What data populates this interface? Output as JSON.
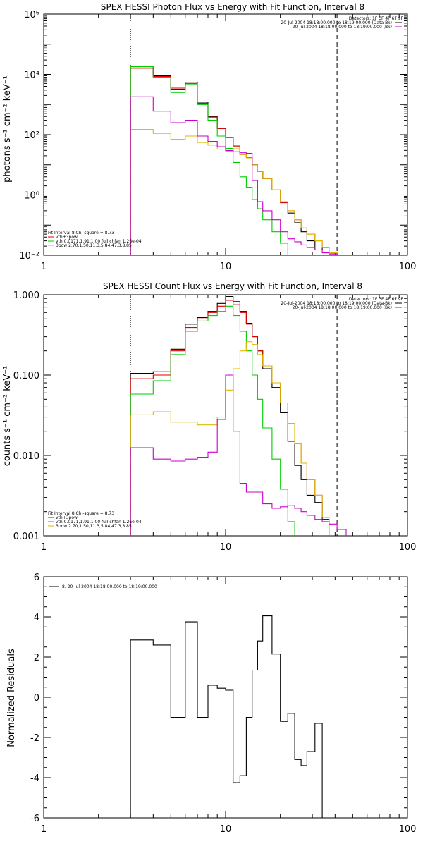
{
  "chart_data": [
    {
      "type": "line",
      "title": "SPEX HESSI Photon Flux vs Energy with Fit Function, Interval 8",
      "xlabel": "",
      "ylabel": "photons s⁻¹ cm⁻² keV⁻¹",
      "xscale": "log",
      "yscale": "log",
      "xlim": [
        1,
        100
      ],
      "ylim": [
        0.01,
        1000000
      ],
      "xticks": [
        1,
        10,
        100
      ],
      "xtick_labels": [
        "1",
        "10",
        "100"
      ],
      "yticks": [
        0.01,
        1,
        100,
        10000,
        1000000
      ],
      "ytick_labels": [
        "10⁻²",
        "10⁰",
        "10²",
        "10⁴",
        "10⁶"
      ],
      "vlines": [
        {
          "x": 3,
          "style": "dotted"
        },
        {
          "x": 41,
          "style": "dashed"
        }
      ],
      "info_lines": [
        "Detectors: 1F 3F 4F 6F 9F",
        "20-Jul-2004 18:18:00.000 to 18:19:00.000 (Data-Bk)",
        "20-Jul-2004 18:18:00.000 to 18:19:00.000 (Bk)"
      ],
      "fit_lines": [
        "Fit Interval 8    Chi-square = 8.73",
        "vth+3pow",
        "vth 0.0171,1.91,1.00  full chfan 1.26e-04",
        "3pow 2.70,1.50,11.3,5.84,47.3,8.85"
      ],
      "edges": [
        3,
        4,
        5,
        6,
        7,
        8,
        9,
        10,
        11,
        12,
        13,
        14,
        15,
        16,
        18,
        20,
        22,
        24,
        26,
        28,
        31,
        34,
        37,
        41
      ],
      "series": [
        {
          "name": "Data-Bk",
          "color": "#000000",
          "values": [
            18000,
            9000,
            3200,
            5500,
            1200,
            400,
            160,
            80,
            42,
            22,
            18,
            10,
            6,
            3.5,
            1.5,
            0.6,
            0.25,
            0.12,
            0.06,
            0.03,
            0.015,
            0.018,
            0.012
          ]
        },
        {
          "name": "vth+3pow",
          "color": "#dd0000",
          "values": [
            16000,
            8500,
            3500,
            5000,
            1100,
            380,
            160,
            80,
            42,
            22,
            18,
            10,
            6,
            3.5,
            1.5,
            0.55,
            0.3,
            0.15,
            0.08,
            0.05,
            0.03,
            0.018,
            0.012
          ]
        },
        {
          "name": "vth",
          "color": "#00cc00",
          "values": [
            18000,
            8000,
            2500,
            4800,
            1000,
            300,
            90,
            35,
            12,
            4,
            1.8,
            0.7,
            0.35,
            0.15,
            0.06,
            0.025,
            0.01
          ]
        },
        {
          "name": "3pow",
          "color": "#ddbb00",
          "values": [
            150,
            110,
            70,
            90,
            55,
            45,
            33,
            28,
            34,
            22,
            17,
            10,
            6,
            3.5,
            1.5,
            0.6,
            0.3,
            0.15,
            0.08,
            0.05,
            0.03,
            0.018,
            0.012
          ]
        },
        {
          "name": "Bk",
          "color": "#cc00cc",
          "values": [
            1800,
            600,
            250,
            300,
            90,
            60,
            40,
            30,
            27,
            25,
            24,
            3,
            0.6,
            0.3,
            0.15,
            0.06,
            0.035,
            0.028,
            0.022,
            0.018,
            0.015,
            0.012,
            0.011
          ]
        }
      ]
    },
    {
      "type": "line",
      "title": "SPEX HESSI Count Flux vs Energy with Fit Function, Interval 8",
      "xlabel": "",
      "ylabel": "counts s⁻¹ cm⁻² keV⁻¹",
      "xscale": "log",
      "yscale": "log",
      "xlim": [
        1,
        100
      ],
      "ylim": [
        0.001,
        1
      ],
      "xticks": [
        1,
        10,
        100
      ],
      "xtick_labels": [
        "1",
        "10",
        "100"
      ],
      "yticks": [
        0.001,
        0.01,
        0.1,
        1
      ],
      "ytick_labels": [
        "0.001",
        "0.010",
        "0.100",
        "1.000"
      ],
      "vlines": [
        {
          "x": 3,
          "style": "dotted"
        },
        {
          "x": 41,
          "style": "dashed"
        }
      ],
      "info_lines": [
        "Detectors: 1F 3F 4F 6F 9F",
        "20-Jul-2004 18:18:00.000 to 18:19:00.000 (Data-Bk)",
        "20-Jul-2004 18:18:00.000 to 18:19:00.000 (Bk)"
      ],
      "fit_lines": [
        "Fit Interval 8    Chi-square = 8.73",
        "vth+3pow",
        "vth 0.0171,1.91,1.00  full chfan 1.26e-04",
        "3pow 2.70,1.50,11.3,5.84,47.3,8.85"
      ],
      "edges": [
        3,
        4,
        5,
        6,
        7,
        8,
        9,
        10,
        11,
        12,
        13,
        14,
        15,
        16,
        18,
        20,
        22,
        24,
        26,
        28,
        31,
        34,
        37,
        41,
        46
      ],
      "series": [
        {
          "name": "Data-Bk",
          "color": "#000000",
          "values": [
            0.105,
            0.11,
            0.21,
            0.43,
            0.52,
            0.62,
            0.78,
            0.95,
            0.82,
            0.62,
            0.44,
            0.3,
            0.2,
            0.12,
            0.07,
            0.034,
            0.015,
            0.0075,
            0.005,
            0.0032,
            0.0026,
            0.0016,
            0.0009
          ]
        },
        {
          "name": "vth+3pow",
          "color": "#dd0000",
          "values": [
            0.09,
            0.1,
            0.2,
            0.39,
            0.5,
            0.6,
            0.72,
            0.85,
            0.75,
            0.6,
            0.43,
            0.3,
            0.2,
            0.13,
            0.08,
            0.045,
            0.025,
            0.014,
            0.008,
            0.005,
            0.0032,
            0.0017,
            0.0009
          ]
        },
        {
          "name": "vth",
          "color": "#00cc00",
          "values": [
            0.058,
            0.085,
            0.18,
            0.35,
            0.47,
            0.55,
            0.62,
            0.72,
            0.55,
            0.35,
            0.2,
            0.1,
            0.05,
            0.022,
            0.009,
            0.0038,
            0.0015,
            0.0009
          ]
        },
        {
          "name": "3pow",
          "color": "#ddbb00",
          "values": [
            0.032,
            0.035,
            0.026,
            0.026,
            0.024,
            0.024,
            0.03,
            0.065,
            0.12,
            0.2,
            0.26,
            0.24,
            0.18,
            0.13,
            0.08,
            0.045,
            0.025,
            0.014,
            0.008,
            0.005,
            0.0032,
            0.0017,
            0.0009
          ]
        },
        {
          "name": "Bk",
          "color": "#cc00cc",
          "values": [
            0.0125,
            0.009,
            0.0085,
            0.009,
            0.0095,
            0.011,
            0.028,
            0.1,
            0.02,
            0.0045,
            0.0035,
            0.0035,
            0.0035,
            0.0025,
            0.0022,
            0.0023,
            0.0024,
            0.0022,
            0.002,
            0.0018,
            0.0016,
            0.0015,
            0.0014,
            0.0012
          ]
        }
      ]
    },
    {
      "type": "line",
      "title": "",
      "xlabel": "",
      "ylabel": "Normalized Residuals",
      "xscale": "log",
      "yscale": "linear",
      "xlim": [
        1,
        100
      ],
      "ylim": [
        -6,
        6
      ],
      "xticks": [
        1,
        10,
        100
      ],
      "xtick_labels": [
        "1",
        "10",
        "100"
      ],
      "yticks": [
        -6,
        -4,
        -2,
        0,
        2,
        4,
        6
      ],
      "ytick_labels": [
        "-6",
        "-4",
        "-2",
        "0",
        "2",
        "4",
        "6"
      ],
      "legend_line": "8. 20-Jul-2004 18:18:00.000 to 18:19:00.000",
      "edges": [
        3,
        4,
        5,
        6,
        7,
        8,
        9,
        10,
        11,
        12,
        13,
        14,
        15,
        16,
        18,
        20,
        22,
        24,
        26,
        28,
        31,
        34,
        37,
        41
      ],
      "series": [
        {
          "name": "8. 20-Jul-2004 18:18:00.000 to 18:19:00.000",
          "color": "#000000",
          "values": [
            2.85,
            2.6,
            -1.0,
            3.75,
            -1.0,
            0.6,
            0.45,
            0.35,
            -4.25,
            -3.9,
            -1.0,
            1.35,
            2.8,
            4.05,
            2.15,
            -1.2,
            -0.8,
            -3.1,
            -3.4,
            -2.7,
            -1.3
          ]
        }
      ]
    }
  ]
}
